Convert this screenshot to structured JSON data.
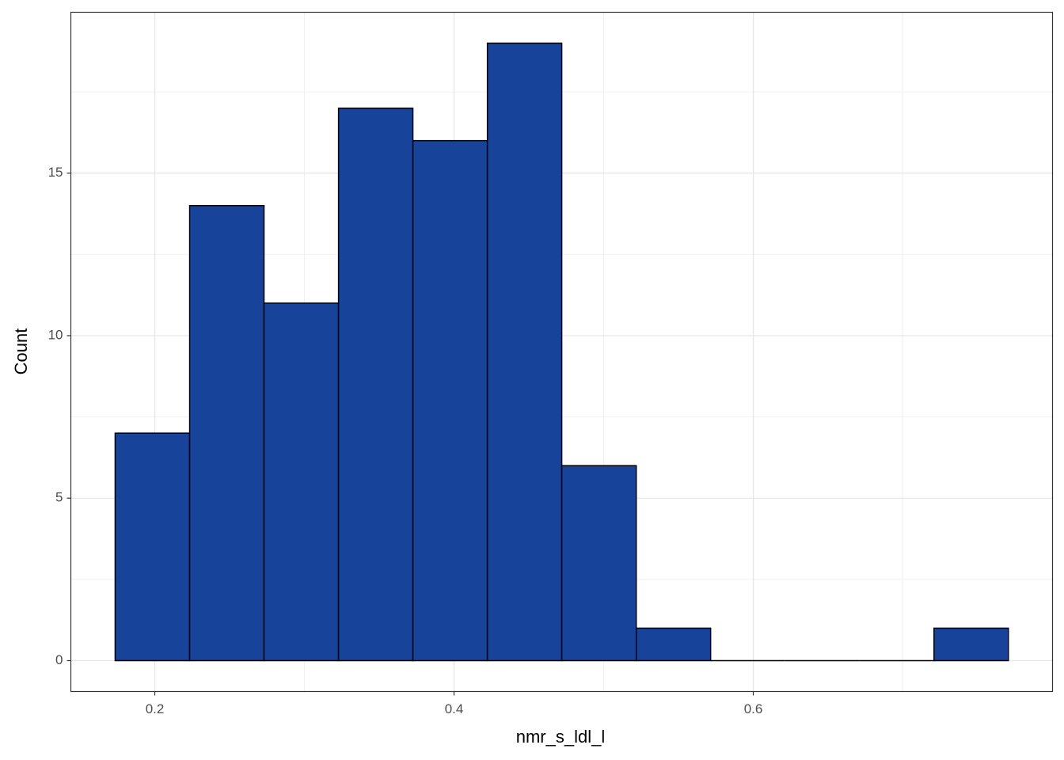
{
  "chart_data": {
    "type": "histogram",
    "x_label": "nmr_s_ldl_l",
    "y_label": "Count",
    "bins": [
      0.1735,
      0.2233,
      0.273,
      0.3228,
      0.3725,
      0.4223,
      0.472,
      0.5218,
      0.5715,
      0.6213,
      0.671,
      0.7208,
      0.7705
    ],
    "values": [
      7,
      14,
      11,
      17,
      16,
      19,
      6,
      1,
      0,
      0,
      0,
      1
    ],
    "color": "#17449a",
    "xlim": [
      0.1439,
      0.8
    ],
    "xticks": [
      0.2,
      0.4,
      0.6
    ],
    "ylim": [
      -0.95,
      19.95
    ],
    "yticks": [
      0,
      5,
      10,
      15
    ],
    "grid": true
  }
}
